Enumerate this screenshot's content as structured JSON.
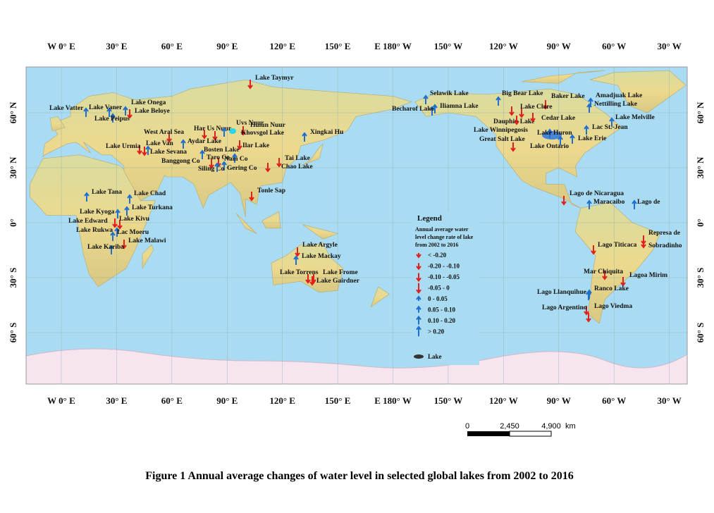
{
  "map": {
    "lon_labels": [
      "W 0° E",
      "30° E",
      "60° E",
      "90° E",
      "120° E",
      "150° E",
      "E 180° W",
      "150° W",
      "120° W",
      "90° W",
      "60° W",
      "30° W"
    ],
    "lat_labels": [
      "60° N",
      "30° N",
      "0°",
      "30° S",
      "60° S"
    ],
    "lakes": [
      "Lake Taymyr",
      "Selawik Lake",
      "Big Bear Lake",
      "Baker Lake",
      "Amadjuak Lake",
      "Nettilling Lake",
      "Becharof Lake",
      "Iliamna Lake",
      "Lake Clare",
      "Dauphin Lake",
      "Cedar Lake",
      "Lake Melville",
      "Lake Winnipegosis",
      "Lac St.-Jean",
      "Lake Huron",
      "Lake Erie",
      "Great Salt Lake",
      "Lake Ontario",
      "Lake Vatter",
      "Lake Vaner",
      "Lake Onega",
      "Lake Beloye",
      "Lake Peipus",
      "West Aral Sea",
      "Har Us Nuur",
      "Uvs Nuur",
      "Hulun Nuur",
      "Khovsgol Lake",
      "Xingkai Hu",
      "Aydar Lake",
      "Lake Urmia",
      "Lake Van",
      "Ilar Lake",
      "Lake Sevana",
      "Bosten Lake",
      "Taro Co",
      "Nam Co",
      "Banggong Co",
      "Tai Lake",
      "Siling Co",
      "Gering Co",
      "Chao Lake",
      "Tonle Sap",
      "Lake Tana",
      "Lake Chad",
      "Lake Turkana",
      "Lake Kyoga",
      "Lake Edward",
      "Lake Kivu",
      "Lake Rukwa",
      "Lac Moeru",
      "Lake Malawi",
      "Lake Kariba",
      "Lake Argyle",
      "Lake Mackay",
      "Lake Torrens",
      "Lake Frome",
      "Lake Gairdner",
      "Lago de Nicaragua",
      "Maracaibo",
      "Lago de",
      "Represa de",
      "Sobradinho",
      "Lago Titicaca",
      "Mar Chiquita",
      "Lagoa Mirim",
      "Ranco Lake",
      "Lago Llanquihue",
      "Lago Argentino",
      "Lago Viedma"
    ],
    "legend": {
      "title": "Legend",
      "subtitle": [
        "Annual average water",
        "level change rate of lake",
        "from 2002 to 2016"
      ],
      "classes": [
        "< -0.20",
        "-0.20 - -0.10",
        "-0.10 - -0.05",
        "-0.05 - 0",
        "0 - 0.05",
        "0.05 - 0.10",
        "0.10 - 0.20",
        "> 0.20"
      ],
      "lake": "Lake"
    },
    "scale_bar": {
      "labels": [
        "0",
        "2,450",
        "4,900"
      ],
      "unit": "km"
    },
    "caption": "Figure 1  Annual average changes of water level in selected global lakes from 2002 to 2016"
  }
}
